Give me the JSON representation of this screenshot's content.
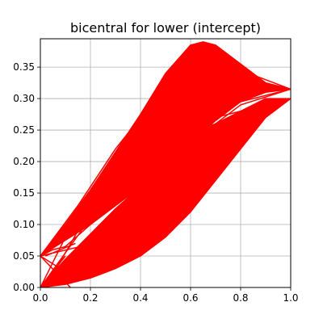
{
  "chart_data": {
    "type": "line",
    "title": "bicentral for lower (intercept)",
    "xlabel": "",
    "ylabel": "",
    "xlim": [
      0.0,
      1.0
    ],
    "ylim": [
      0.0,
      0.395
    ],
    "grid": true,
    "x_ticks": [
      "0.0",
      "0.2",
      "0.4",
      "0.6",
      "0.8",
      "1.0"
    ],
    "y_ticks": [
      "0.00",
      "0.05",
      "0.10",
      "0.15",
      "0.20",
      "0.25",
      "0.30",
      "0.35"
    ],
    "x_tick_values": [
      0.0,
      0.2,
      0.4,
      0.6,
      0.8,
      1.0
    ],
    "y_tick_values": [
      0.0,
      0.05,
      0.1,
      0.15,
      0.2,
      0.25,
      0.3,
      0.35
    ],
    "series_color": "#ff0000",
    "bands": [
      {
        "upper": {
          "x": [
            0.0,
            0.1,
            0.2,
            0.3,
            0.4,
            0.5,
            0.6,
            0.65,
            0.7,
            0.8,
            0.9,
            1.0
          ],
          "y": [
            0.05,
            0.1,
            0.155,
            0.215,
            0.275,
            0.34,
            0.385,
            0.39,
            0.385,
            0.355,
            0.325,
            0.315
          ]
        },
        "lower": {
          "x": [
            0.0,
            0.1,
            0.2,
            0.3,
            0.4,
            0.5,
            0.6,
            0.7,
            0.8,
            0.9,
            1.0
          ],
          "y": [
            0.05,
            0.075,
            0.1,
            0.13,
            0.16,
            0.195,
            0.23,
            0.265,
            0.295,
            0.31,
            0.315
          ]
        }
      },
      {
        "upper": {
          "x": [
            0.0,
            0.1,
            0.2,
            0.3,
            0.4,
            0.5,
            0.6,
            0.7,
            0.8,
            0.9,
            1.0
          ],
          "y": [
            0.0,
            0.045,
            0.085,
            0.125,
            0.16,
            0.2,
            0.235,
            0.26,
            0.28,
            0.3,
            0.3
          ]
        },
        "lower": {
          "x": [
            0.0,
            0.1,
            0.2,
            0.3,
            0.4,
            0.5,
            0.6,
            0.7,
            0.8,
            0.9,
            1.0
          ],
          "y": [
            0.0,
            0.005,
            0.015,
            0.03,
            0.05,
            0.08,
            0.12,
            0.17,
            0.22,
            0.27,
            0.3
          ]
        }
      }
    ],
    "lines": [
      {
        "x": [
          0.0,
          0.25,
          0.5,
          0.75,
          1.0
        ],
        "y": [
          0.05,
          0.16,
          0.25,
          0.29,
          0.315
        ]
      },
      {
        "x": [
          0.0,
          0.3,
          0.55,
          0.8,
          1.0
        ],
        "y": [
          0.05,
          0.2,
          0.31,
          0.33,
          0.315
        ]
      },
      {
        "x": [
          0.0,
          0.2,
          0.45,
          0.7,
          1.0
        ],
        "y": [
          0.0,
          0.11,
          0.22,
          0.27,
          0.3
        ]
      },
      {
        "x": [
          0.0,
          0.35,
          0.6,
          0.85,
          1.0
        ],
        "y": [
          0.0,
          0.12,
          0.2,
          0.27,
          0.3
        ]
      },
      {
        "x": [
          0.0,
          0.05,
          0.1,
          0.2,
          0.4,
          0.6,
          0.8,
          1.0
        ],
        "y": [
          0.05,
          0.06,
          0.065,
          0.1,
          0.16,
          0.23,
          0.29,
          0.315
        ]
      },
      {
        "x": [
          0.0,
          0.15,
          0.3,
          0.5,
          0.7,
          1.0
        ],
        "y": [
          0.05,
          0.13,
          0.22,
          0.32,
          0.36,
          0.315
        ]
      },
      {
        "x": [
          0.0,
          0.1,
          0.3,
          0.5,
          0.7,
          1.0
        ],
        "y": [
          0.0,
          0.08,
          0.17,
          0.23,
          0.26,
          0.3
        ]
      },
      {
        "x": [
          0.0,
          0.15,
          0.4,
          0.65,
          0.9,
          1.0
        ],
        "y": [
          0.0,
          0.05,
          0.14,
          0.22,
          0.28,
          0.3
        ]
      },
      {
        "x": [
          0.0,
          0.1
        ],
        "y": [
          0.0,
          0.05
        ]
      },
      {
        "x": [
          0.0,
          0.12
        ],
        "y": [
          0.05,
          0.0
        ]
      },
      {
        "x": [
          0.0,
          0.16
        ],
        "y": [
          0.05,
          0.065
        ]
      },
      {
        "x": [
          0.0,
          0.08
        ],
        "y": [
          0.05,
          0.03
        ]
      },
      {
        "x": [
          0.02,
          0.15
        ],
        "y": [
          0.0,
          0.09
        ]
      },
      {
        "x": [
          0.02,
          0.14
        ],
        "y": [
          0.05,
          0.07
        ]
      }
    ]
  }
}
